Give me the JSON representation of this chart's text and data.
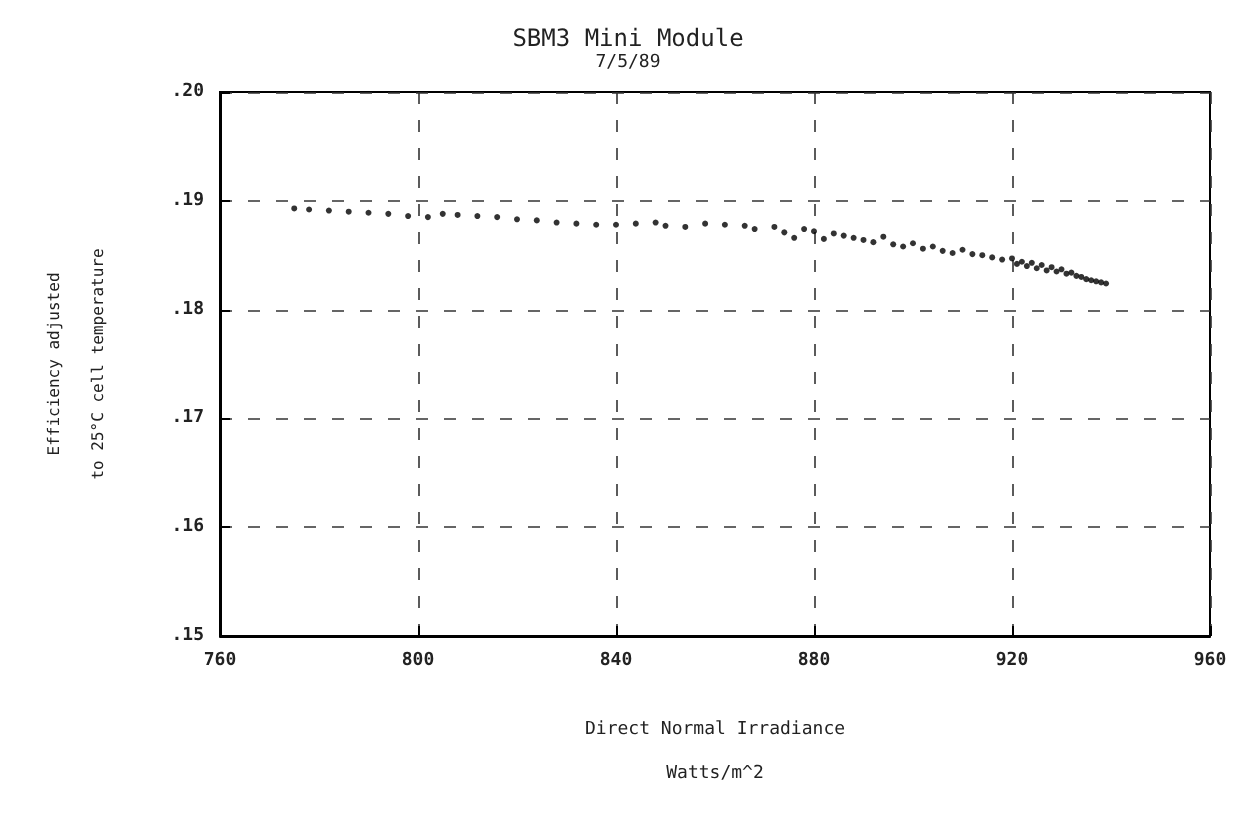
{
  "chart_data": {
    "type": "scatter",
    "title": "SBM3 Mini Module",
    "subtitle": "7/5/89",
    "xlabel": "Direct Normal Irradiance\nWatts/m^2",
    "ylabel": "Efficiency adjusted\nto 25°C cell temperature",
    "x": [
      775,
      778,
      782,
      786,
      790,
      794,
      798,
      802,
      805,
      808,
      812,
      816,
      820,
      824,
      828,
      832,
      836,
      840,
      844,
      848,
      850,
      854,
      858,
      862,
      866,
      868,
      872,
      874,
      876,
      878,
      880,
      882,
      884,
      886,
      888,
      890,
      892,
      894,
      896,
      898,
      900,
      902,
      904,
      906,
      908,
      910,
      912,
      914,
      916,
      918,
      920,
      921,
      922,
      923,
      924,
      925,
      926,
      927,
      928,
      929,
      930,
      931,
      932,
      933,
      934,
      935,
      936,
      937,
      938,
      939
    ],
    "series": [
      {
        "color": "#000000",
        "values": [
          0.1893,
          0.1892,
          0.1891,
          0.189,
          0.1889,
          0.1888,
          0.1886,
          0.1885,
          0.1888,
          0.1887,
          0.1886,
          0.1885,
          0.1883,
          0.1882,
          0.188,
          0.1879,
          0.1878,
          0.1878,
          0.1879,
          0.188,
          0.1877,
          0.1876,
          0.1879,
          0.1878,
          0.1877,
          0.1874,
          0.1876,
          0.1871,
          0.1866,
          0.1874,
          0.1872,
          0.1865,
          0.187,
          0.1868,
          0.1866,
          0.1864,
          0.1862,
          0.1867,
          0.186,
          0.1858,
          0.1861,
          0.1856,
          0.1858,
          0.1854,
          0.1852,
          0.1855,
          0.1851,
          0.185,
          0.1848,
          0.1846,
          0.1847,
          0.1842,
          0.1844,
          0.184,
          0.1843,
          0.1838,
          0.1841,
          0.1836,
          0.1839,
          0.1835,
          0.1837,
          0.1833,
          0.1834,
          0.1831,
          0.183,
          0.1828,
          0.1827,
          0.1826,
          0.1825,
          0.1824
        ]
      }
    ],
    "xlim": [
      760,
      960
    ],
    "xticks": [
      760,
      800,
      840,
      880,
      920,
      960
    ],
    "ylim": [
      0.15,
      0.2
    ],
    "yticks": [
      {
        "value": 0.15,
        "label": ".15"
      },
      {
        "value": 0.16,
        "label": ".16"
      },
      {
        "value": 0.17,
        "label": ".17"
      },
      {
        "value": 0.18,
        "label": ".18"
      },
      {
        "value": 0.19,
        "label": ".19"
      },
      {
        "value": 0.2,
        "label": ".20"
      }
    ],
    "grid": true,
    "marker": "circle"
  }
}
